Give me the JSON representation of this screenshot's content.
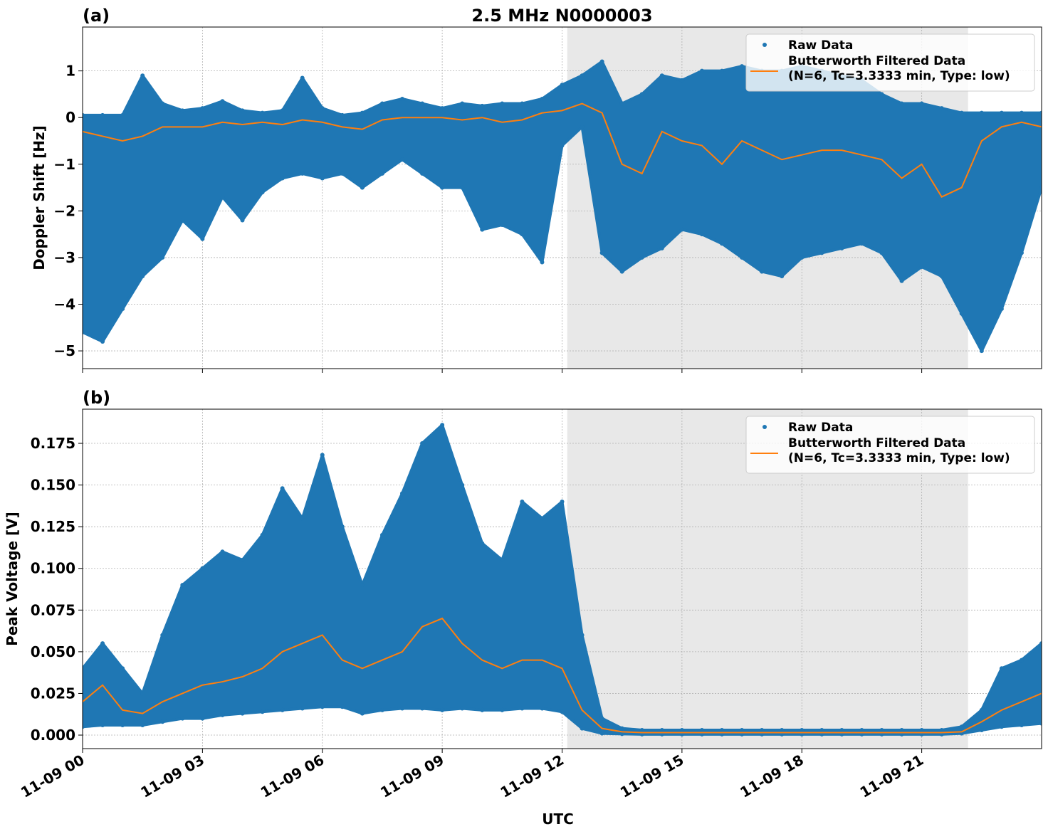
{
  "chart_data": [
    {
      "type": "scatter",
      "panel_label": "(a)",
      "title": "2.5 MHz N0000003",
      "ylabel": "Doppler Shift [Hz]",
      "xlabel": "",
      "xlim_hours": [
        0,
        24
      ],
      "ylim": [
        -5.38,
        1.94
      ],
      "yticks": [
        1,
        0,
        -1,
        -2,
        -3,
        -4,
        -5
      ],
      "ytick_labels": [
        "1",
        "0",
        "−1",
        "−2",
        "−3",
        "−4",
        "−5"
      ],
      "grid": true,
      "legend_placement": "top-right",
      "shaded_region_hours": [
        12.13,
        22.16
      ],
      "x_hours": [
        0,
        0.5,
        1,
        1.5,
        2,
        2.5,
        3,
        3.5,
        4,
        4.5,
        5,
        5.5,
        6,
        6.5,
        7,
        7.5,
        8,
        8.5,
        9,
        9.5,
        10,
        10.5,
        11,
        11.5,
        12,
        12.5,
        13,
        13.5,
        14,
        14.5,
        15,
        15.5,
        16,
        16.5,
        17,
        17.5,
        18,
        18.5,
        19,
        19.5,
        20,
        20.5,
        21,
        21.5,
        22,
        22.5,
        23,
        23.5,
        24
      ],
      "series": [
        {
          "name": "Raw Data",
          "kind": "scatter-envelope",
          "color": "#1f77b4",
          "upper": [
            0.05,
            0.05,
            0.05,
            0.9,
            0.3,
            0.15,
            0.2,
            0.35,
            0.15,
            0.1,
            0.15,
            0.85,
            0.2,
            0.05,
            0.1,
            0.3,
            0.4,
            0.3,
            0.2,
            0.3,
            0.25,
            0.3,
            0.3,
            0.4,
            0.7,
            0.9,
            1.2,
            0.3,
            0.5,
            0.9,
            0.8,
            1.0,
            1.0,
            1.1,
            1.0,
            1.0,
            1.1,
            1.0,
            0.9,
            0.8,
            0.5,
            0.3,
            0.3,
            0.2,
            0.1,
            0.1,
            0.1,
            0.1,
            0.1
          ],
          "lower": [
            -4.6,
            -4.8,
            -4.1,
            -3.4,
            -3.0,
            -2.2,
            -2.6,
            -1.7,
            -2.2,
            -1.6,
            -1.3,
            -1.2,
            -1.3,
            -1.2,
            -1.5,
            -1.2,
            -0.9,
            -1.2,
            -1.5,
            -1.5,
            -2.4,
            -2.3,
            -2.5,
            -3.1,
            -0.6,
            -0.2,
            -2.9,
            -3.3,
            -3.0,
            -2.8,
            -2.4,
            -2.5,
            -2.7,
            -3.0,
            -3.3,
            -3.4,
            -3.0,
            -2.9,
            -2.8,
            -2.7,
            -2.9,
            -3.5,
            -3.2,
            -3.4,
            -4.2,
            -5.0,
            -4.1,
            -2.9,
            -1.5
          ]
        },
        {
          "name": "Butterworth Filtered Data\n(N=6, Tc=3.3333 min, Type: low)",
          "kind": "line",
          "color": "#ff7f0e",
          "values": [
            -0.3,
            -0.4,
            -0.5,
            -0.4,
            -0.2,
            -0.2,
            -0.2,
            -0.1,
            -0.15,
            -0.1,
            -0.15,
            -0.05,
            -0.1,
            -0.2,
            -0.25,
            -0.05,
            0,
            0,
            0,
            -0.05,
            0,
            -0.1,
            -0.05,
            0.1,
            0.15,
            0.3,
            0.1,
            -1.0,
            -1.2,
            -0.3,
            -0.5,
            -0.6,
            -1.0,
            -0.5,
            -0.7,
            -0.9,
            -0.8,
            -0.7,
            -0.7,
            -0.8,
            -0.9,
            -1.3,
            -1.0,
            -1.7,
            -1.5,
            -0.5,
            -0.2,
            -0.1,
            -0.2
          ]
        }
      ]
    },
    {
      "type": "scatter",
      "panel_label": "(b)",
      "title": "",
      "ylabel": "Peak Voltage [V]",
      "xlabel": "UTC",
      "xlim_hours": [
        0,
        24
      ],
      "ylim": [
        -0.0081,
        0.1955
      ],
      "yticks": [
        0,
        0.025,
        0.05,
        0.075,
        0.1,
        0.125,
        0.15,
        0.175
      ],
      "ytick_labels": [
        "0.000",
        "0.025",
        "0.050",
        "0.075",
        "0.100",
        "0.125",
        "0.150",
        "0.175"
      ],
      "xticks_hours": [
        0,
        3,
        6,
        9,
        12,
        15,
        18,
        21
      ],
      "xtick_labels": [
        "11-09 00",
        "11-09 03",
        "11-09 06",
        "11-09 09",
        "11-09 12",
        "11-09 15",
        "11-09 18",
        "11-09 21"
      ],
      "grid": true,
      "legend_placement": "top-right",
      "shaded_region_hours": [
        12.13,
        22.16
      ],
      "x_hours": [
        0,
        0.5,
        1,
        1.5,
        2,
        2.5,
        3,
        3.5,
        4,
        4.5,
        5,
        5.5,
        6,
        6.5,
        7,
        7.5,
        8,
        8.5,
        9,
        9.5,
        10,
        10.5,
        11,
        11.5,
        12,
        12.5,
        13,
        13.5,
        14,
        14.5,
        15,
        15.5,
        16,
        16.5,
        17,
        17.5,
        18,
        18.5,
        19,
        19.5,
        20,
        20.5,
        21,
        21.5,
        22,
        22.5,
        23,
        23.5,
        24
      ],
      "series": [
        {
          "name": "Raw Data",
          "kind": "scatter-envelope",
          "color": "#1f77b4",
          "upper": [
            0.04,
            0.055,
            0.04,
            0.025,
            0.06,
            0.09,
            0.1,
            0.11,
            0.105,
            0.12,
            0.148,
            0.13,
            0.168,
            0.125,
            0.09,
            0.12,
            0.145,
            0.175,
            0.186,
            0.15,
            0.115,
            0.105,
            0.14,
            0.13,
            0.14,
            0.06,
            0.01,
            0.004,
            0.003,
            0.003,
            0.003,
            0.003,
            0.003,
            0.003,
            0.003,
            0.003,
            0.003,
            0.003,
            0.003,
            0.003,
            0.003,
            0.003,
            0.003,
            0.003,
            0.005,
            0.015,
            0.04,
            0.045,
            0.055
          ],
          "lower": [
            0.005,
            0.006,
            0.006,
            0.006,
            0.008,
            0.01,
            0.01,
            0.012,
            0.013,
            0.014,
            0.015,
            0.016,
            0.017,
            0.017,
            0.013,
            0.015,
            0.016,
            0.016,
            0.015,
            0.016,
            0.015,
            0.015,
            0.016,
            0.016,
            0.014,
            0.004,
            0.001,
            0.0007,
            0.0005,
            0.0005,
            0.0005,
            0.0005,
            0.0005,
            0.0005,
            0.0005,
            0.0005,
            0.0005,
            0.0005,
            0.0005,
            0.0005,
            0.0005,
            0.0005,
            0.0005,
            0.0005,
            0.001,
            0.003,
            0.005,
            0.006,
            0.007
          ]
        },
        {
          "name": "Butterworth Filtered Data\n(N=6, Tc=3.3333 min, Type: low)",
          "kind": "line",
          "color": "#ff7f0e",
          "values": [
            0.02,
            0.03,
            0.015,
            0.013,
            0.02,
            0.025,
            0.03,
            0.032,
            0.035,
            0.04,
            0.05,
            0.055,
            0.06,
            0.045,
            0.04,
            0.045,
            0.05,
            0.065,
            0.07,
            0.055,
            0.045,
            0.04,
            0.045,
            0.045,
            0.04,
            0.015,
            0.004,
            0.002,
            0.0015,
            0.0015,
            0.0015,
            0.0015,
            0.0015,
            0.0015,
            0.0015,
            0.0015,
            0.0015,
            0.0015,
            0.0015,
            0.0015,
            0.0015,
            0.0015,
            0.0015,
            0.0015,
            0.002,
            0.008,
            0.015,
            0.02,
            0.025
          ]
        }
      ]
    }
  ]
}
